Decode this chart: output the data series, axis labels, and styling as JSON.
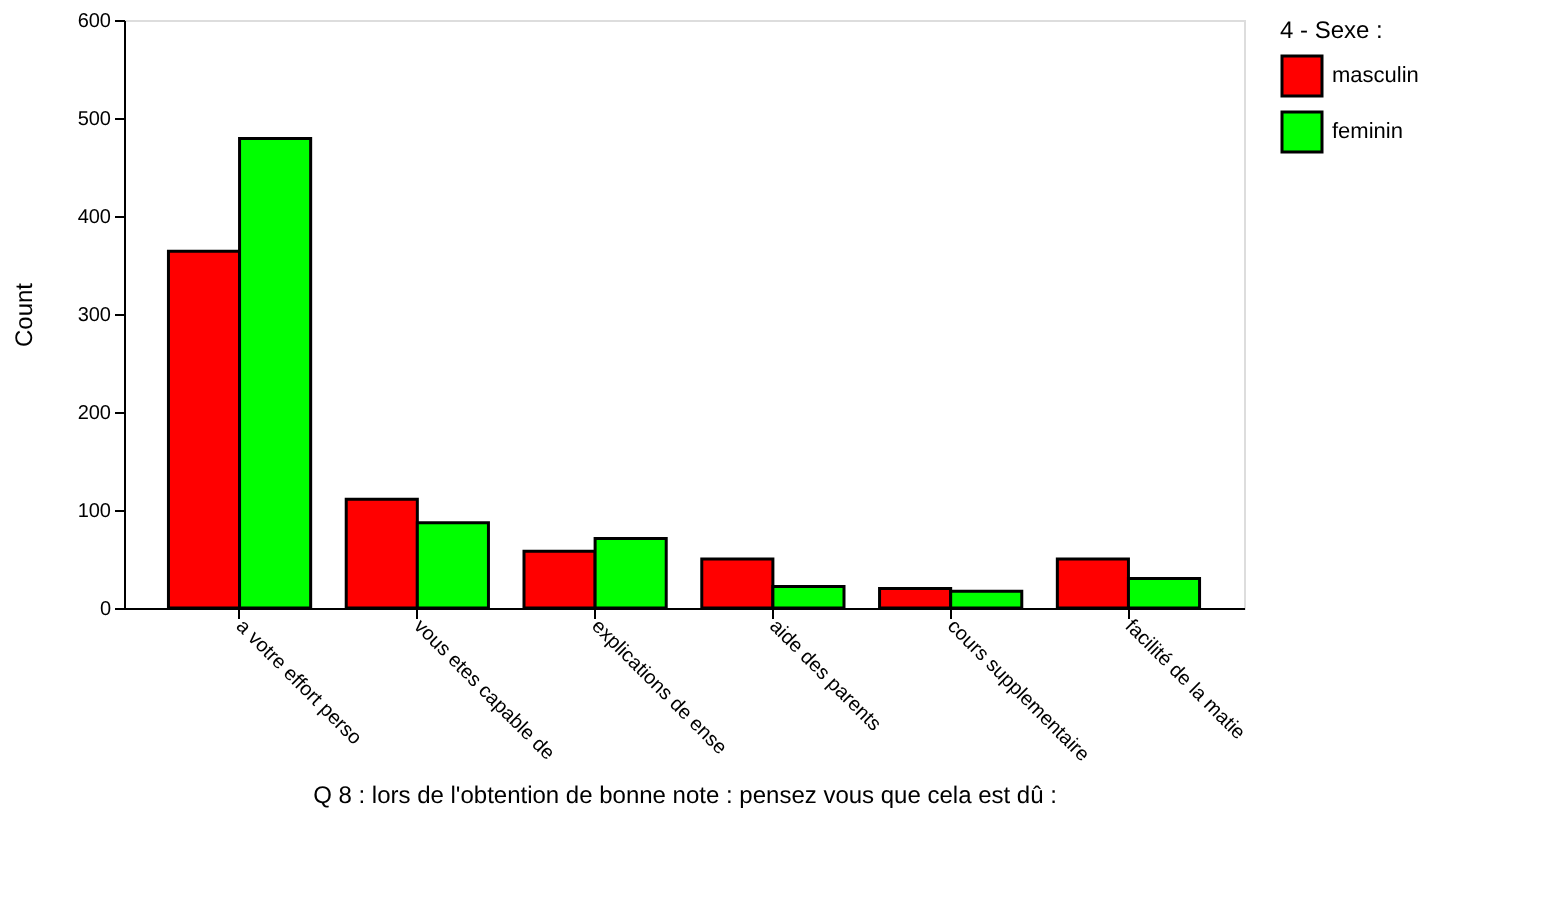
{
  "chart_data": {
    "type": "bar",
    "categories": [
      "a votre effort perso",
      "vous etes capable de",
      "explications de ense",
      "aide des parents",
      "cours supplementaire",
      "facilité de la matie"
    ],
    "series": [
      {
        "name": "masculin",
        "color": "#ff0000",
        "values": [
          364,
          111,
          58,
          50,
          20,
          50
        ]
      },
      {
        "name": "feminin",
        "color": "#00ff00",
        "values": [
          479,
          87,
          71,
          22,
          17,
          30
        ]
      }
    ],
    "ylabel": "Count",
    "xlabel": "Q 8 : lors de l'obtention de bonne note : pensez vous que cela est dû :",
    "legend_title": "4 - Sexe :",
    "legend": "right",
    "ylim": [
      0,
      600
    ],
    "yticks": [
      0,
      100,
      200,
      300,
      400,
      500,
      600
    ],
    "grid": false
  }
}
